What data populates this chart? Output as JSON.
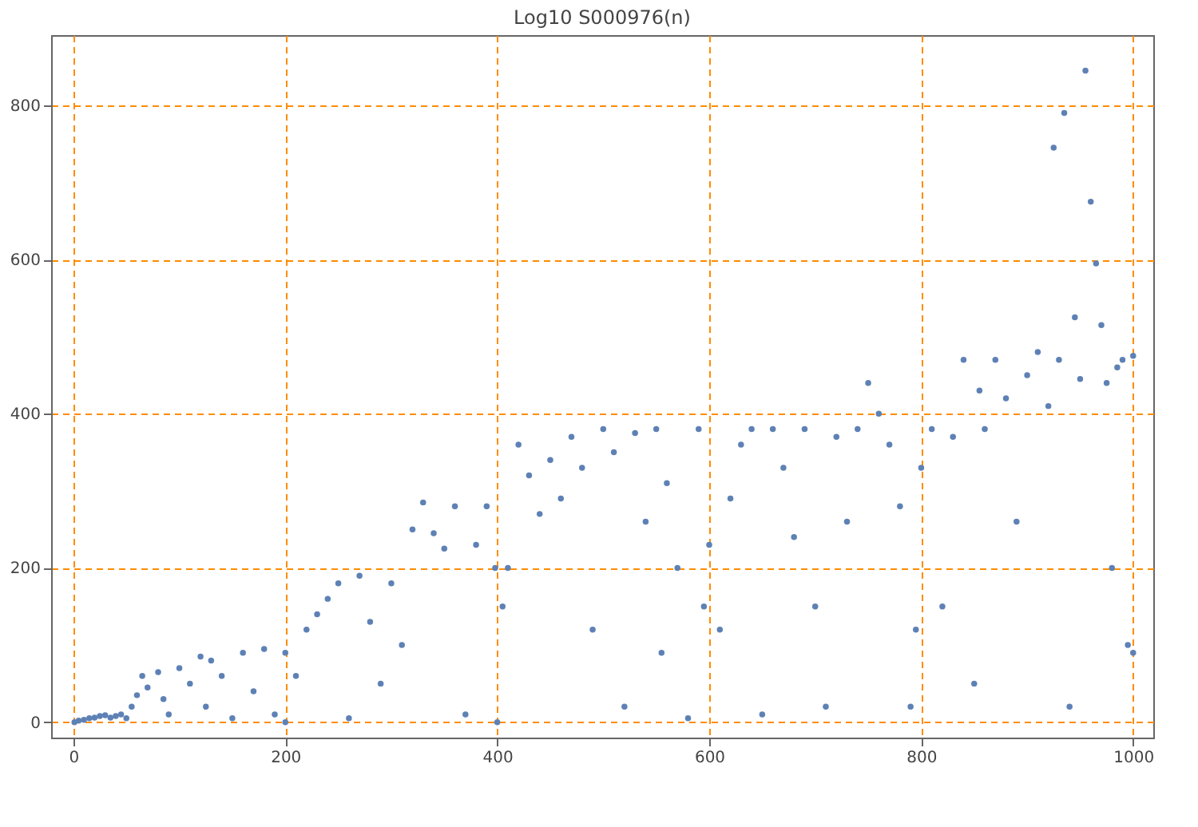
{
  "chart_data": {
    "type": "scatter",
    "title": "Log10 S000976(n)",
    "x": [
      1,
      5,
      10,
      15,
      20,
      25,
      30,
      35,
      40,
      45,
      50,
      55,
      60,
      65,
      70,
      80,
      85,
      90,
      100,
      110,
      120,
      125,
      130,
      140,
      150,
      160,
      170,
      180,
      190,
      200,
      200,
      210,
      220,
      230,
      240,
      250,
      260,
      270,
      280,
      290,
      300,
      310,
      320,
      330,
      340,
      350,
      360,
      370,
      380,
      390,
      398,
      400,
      405,
      410,
      420,
      430,
      440,
      450,
      460,
      470,
      480,
      490,
      500,
      510,
      520,
      530,
      540,
      550,
      555,
      560,
      570,
      580,
      590,
      595,
      600,
      610,
      620,
      630,
      640,
      650,
      660,
      670,
      680,
      690,
      700,
      710,
      720,
      730,
      740,
      750,
      760,
      770,
      780,
      790,
      795,
      800,
      810,
      820,
      830,
      840,
      850,
      855,
      860,
      870,
      880,
      890,
      900,
      910,
      920,
      925,
      930,
      935,
      940,
      945,
      950,
      955,
      960,
      965,
      970,
      975,
      980,
      985,
      990,
      995,
      1000,
      1000
    ],
    "series": [
      {
        "color": "#5e81b5",
        "values": [
          0,
          2,
          3,
          5,
          6,
          8,
          9,
          6,
          8,
          10,
          5,
          20,
          35,
          60,
          45,
          65,
          30,
          10,
          70,
          50,
          85,
          20,
          80,
          60,
          5,
          90,
          40,
          95,
          10,
          90,
          0,
          60,
          120,
          140,
          160,
          180,
          5,
          190,
          130,
          50,
          180,
          100,
          250,
          285,
          245,
          225,
          280,
          10,
          230,
          280,
          200,
          0,
          150,
          200,
          360,
          320,
          270,
          340,
          290,
          370,
          330,
          120,
          380,
          350,
          20,
          375,
          260,
          380,
          90,
          310,
          200,
          5,
          380,
          150,
          230,
          120,
          290,
          360,
          380,
          10,
          380,
          330,
          240,
          380,
          150,
          20,
          370,
          260,
          380,
          440,
          400,
          360,
          280,
          20,
          120,
          330,
          380,
          150,
          370,
          470,
          50,
          430,
          380,
          470,
          420,
          260,
          450,
          480,
          410,
          745,
          470,
          790,
          20,
          525,
          445,
          845,
          675,
          595,
          515,
          440,
          200,
          460,
          470,
          100,
          475,
          90
        ]
      }
    ],
    "xlim": [
      -21,
      1019
    ],
    "ylim": [
      -20,
      891
    ],
    "xticks": [
      0,
      200,
      400,
      600,
      800,
      1000
    ],
    "yticks": [
      0,
      200,
      400,
      600,
      800
    ],
    "grid": true,
    "marker": "circle"
  }
}
